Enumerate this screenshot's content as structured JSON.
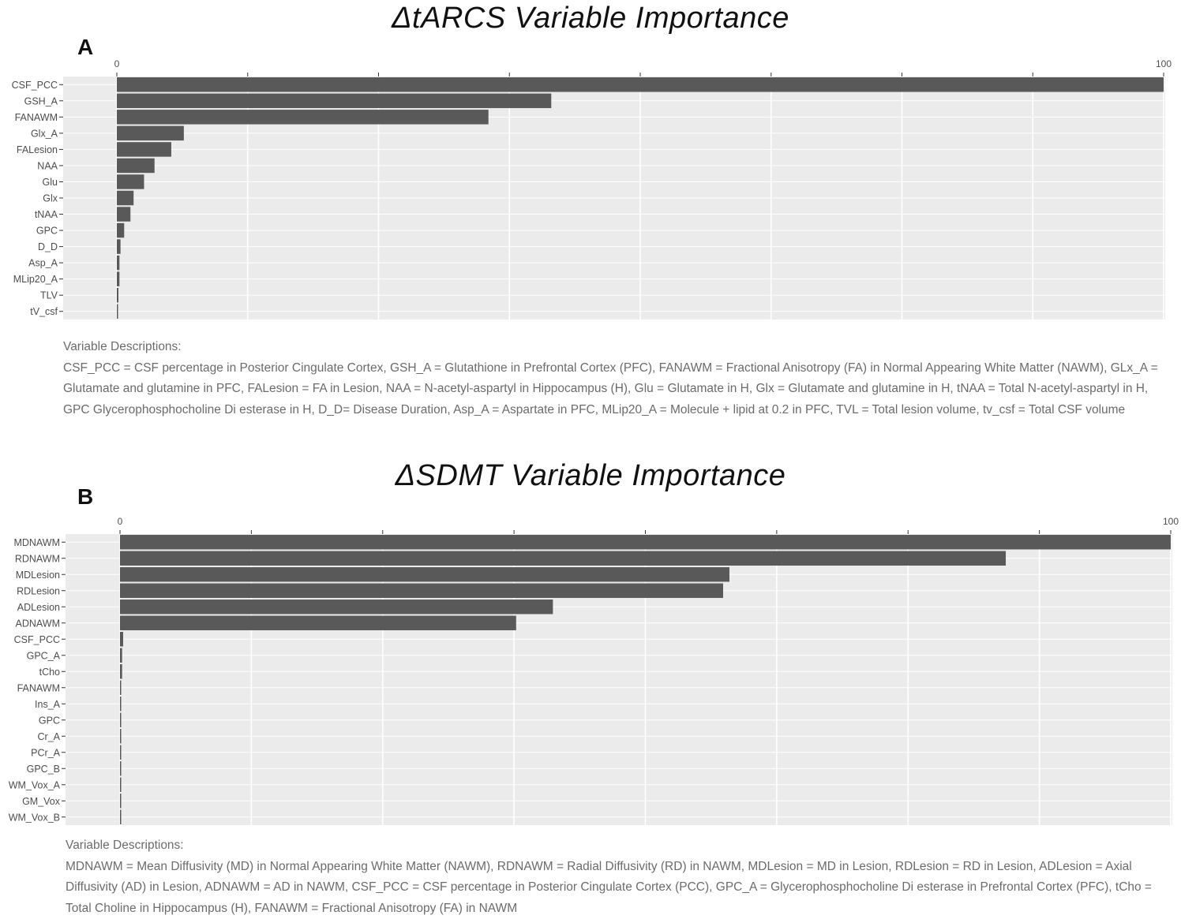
{
  "panels": [
    {
      "title": "ΔtARCS Variable Importance",
      "letter": "A",
      "description_heading": "Variable Descriptions:",
      "description_text": "CSF_PCC = CSF percentage in Posterior Cingulate Cortex, GSH_A = Glutathione in Prefrontal Cortex (PFC), FANAWM = Fractional Anisotropy (FA) in Normal Appearing White Matter (NAWM), GLx_A = Glutamate and glutamine in PFC, FALesion = FA in Lesion, NAA = N-acetyl-aspartyl in Hippocampus (H), Glu = Glutamate in H, Glx = Glutamate and glutamine in H, tNAA = Total N-acetyl-aspartyl in H, GPC Glycerophosphocholine Di esterase in H, D_D= Disease Duration,  Asp_A = Aspartate in PFC, MLip20_A = Molecule + lipid at 0.2 in PFC, TVL = Total lesion volume, tv_csf = Total CSF volume"
    },
    {
      "title": "ΔSDMT Variable Importance",
      "letter": "B",
      "description_heading": "Variable Descriptions:",
      "description_text": "MDNAWM = Mean Diffusivity (MD) in Normal Appearing White Matter (NAWM), RDNAWM = Radial Diffusivity (RD) in NAWM, MDLesion = MD in Lesion, RDLesion = RD in Lesion, ADLesion = Axial Diffusivity (AD) in Lesion, ADNAWM = AD in NAWM, CSF_PCC = CSF percentage in Posterior Cingulate Cortex (PCC), GPC_A = Glycerophosphocholine Di esterase in Prefrontal Cortex (PFC), tCho = Total Choline in Hippocampus (H), FANAWM = Fractional Anisotropy (FA) in NAWM"
    }
  ],
  "chart_data": [
    {
      "type": "bar",
      "orientation": "horizontal",
      "title": "ΔtARCS Variable Importance",
      "categories": [
        "CSF_PCC",
        "GSH_A",
        "FANAWM",
        "Glx_A",
        "FALesion",
        "NAA",
        "Glu",
        "Glx",
        "tNAA",
        "GPC",
        "D_D",
        "Asp_A",
        "MLip20_A",
        "TLV",
        "tV_csf"
      ],
      "values": [
        100,
        41.5,
        35.5,
        6.4,
        5.2,
        3.6,
        2.6,
        1.6,
        1.3,
        0.7,
        0.35,
        0.25,
        0.25,
        0.15,
        0.1
      ],
      "xlim": [
        0,
        100
      ],
      "xticks": [
        "0",
        "100"
      ],
      "grid": true
    },
    {
      "type": "bar",
      "orientation": "horizontal",
      "title": "ΔSDMT Variable Importance",
      "categories": [
        "MDNAWM",
        "RDNAWM",
        "MDLesion",
        "RDLesion",
        "ADLesion",
        "ADNAWM",
        "CSF_PCC",
        "GPC_A",
        "tCho",
        "FANAWM",
        "Ins_A",
        "GPC",
        "Cr_A",
        "PCr_A",
        "GPC_B",
        "WM_Vox_A",
        "GM_Vox",
        "WM_Vox_B"
      ],
      "values": [
        100,
        84.3,
        58,
        57.4,
        41.2,
        37.7,
        0.3,
        0.2,
        0.2,
        0.1,
        0.1,
        0.1,
        0.1,
        0.05,
        0.05,
        0.05,
        0.05,
        0.05
      ],
      "xlim": [
        0,
        100
      ],
      "xticks": [
        "0",
        "100"
      ],
      "grid": true
    }
  ]
}
